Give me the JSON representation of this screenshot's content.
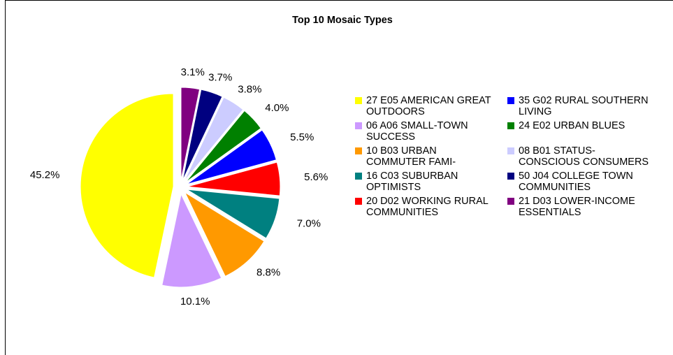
{
  "chart_data": {
    "type": "pie",
    "title": "Top 10 Mosaic Types",
    "categories": [
      "27 E05 AMERICAN GREAT OUTDOORS",
      "06 A06 SMALL-TOWN SUCCESS",
      "10 B03 URBAN COMMUTER FAMI-",
      "16 C03 SUBURBAN OPTIMISTS",
      "20 D02 WORKING RURAL COMMUNITIES",
      "35 G02 RURAL SOUTHERN LIVING",
      "24 E02 URBAN BLUES",
      "08 B01 STATUS-CONSCIOUS CONSUMERS",
      "50 J04 COLLEGE TOWN COMMUNITIES",
      "21 D03 LOWER-INCOME ESSENTIALS"
    ],
    "values": [
      45.2,
      10.1,
      8.8,
      7.0,
      5.6,
      5.5,
      4.0,
      3.8,
      3.7,
      3.1
    ],
    "value_labels": [
      "45.2%",
      "10.1%",
      "8.8%",
      "7.0%",
      "5.6%",
      "5.5%",
      "4.0%",
      "3.8%",
      "3.7%",
      "3.1%"
    ],
    "colors": [
      "#ffff00",
      "#cc99ff",
      "#ff9900",
      "#008080",
      "#ff0000",
      "#0000ff",
      "#008000",
      "#ccccff",
      "#000080",
      "#800080"
    ],
    "legend": "right"
  }
}
